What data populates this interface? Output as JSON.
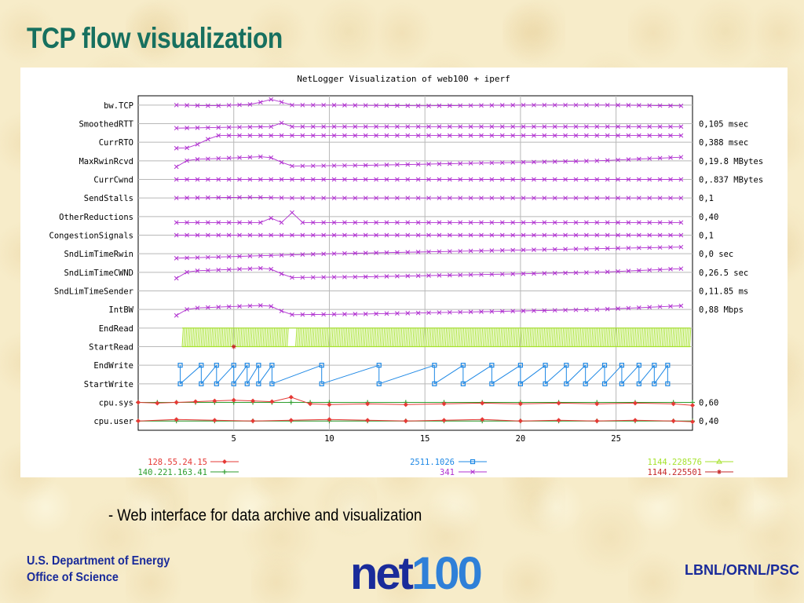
{
  "slide": {
    "title": "TCP flow visualization",
    "caption": "- Web interface for data archive and visualization",
    "org_line1": "U.S. Department of Energy",
    "org_line2": "Office of Science",
    "partners": "LBNL/ORNL/PSC",
    "logo_text": "net100"
  },
  "colors": {
    "title": "#17705f",
    "org": "#1a2b9a",
    "series_341": "#b030d0",
    "series_2511": "#1e88e5",
    "series_1144a": "#a6e22e",
    "series_1144b": "#c62828",
    "series_128": "#e53935",
    "series_140": "#2e9e2e"
  },
  "chart_data": {
    "type": "line",
    "title": "NetLogger Visualization of web100 + iperf",
    "xlabel": "",
    "ylabel": "",
    "xlim": [
      0,
      29
    ],
    "x_ticks": [
      5,
      10,
      15,
      20,
      25
    ],
    "grid": true,
    "legend_position": "bottom",
    "rows": [
      {
        "label": "bw.TCP",
        "range": ""
      },
      {
        "label": "SmoothedRTT",
        "range": "0,105 msec"
      },
      {
        "label": "CurrRTO",
        "range": "0,388 msec"
      },
      {
        "label": "MaxRwinRcvd",
        "range": "0,19.8 MBytes"
      },
      {
        "label": "CurrCwnd",
        "range": "0,.837 MBytes"
      },
      {
        "label": "SendStalls",
        "range": "0,1"
      },
      {
        "label": "OtherReductions",
        "range": "0,40"
      },
      {
        "label": "CongestionSignals",
        "range": "0,1"
      },
      {
        "label": "SndLimTimeRwin",
        "range": "0,0 sec"
      },
      {
        "label": "SndLimTimeCWND",
        "range": "0,26.5 sec"
      },
      {
        "label": "SndLimTimeSender",
        "range": "0,11.85 ms"
      },
      {
        "label": "IntBW",
        "range": "0,88 Mbps"
      },
      {
        "label": "EndRead",
        "range": ""
      },
      {
        "label": "StartRead",
        "range": ""
      },
      {
        "label": "EndWrite",
        "range": ""
      },
      {
        "label": "StartWrite",
        "range": ""
      },
      {
        "label": "cpu.sys",
        "range": "0,60"
      },
      {
        "label": "cpu.user",
        "range": "0,40"
      }
    ],
    "series": [
      {
        "name": "128.55.24.15",
        "color": "#e53935",
        "marker": "diamond"
      },
      {
        "name": "140.221.163.41",
        "color": "#2e9e2e",
        "marker": "plus"
      },
      {
        "name": "2511.1026",
        "color": "#1e88e5",
        "marker": "square"
      },
      {
        "name": "341",
        "color": "#b030d0",
        "marker": "x"
      },
      {
        "name": "1144.228576",
        "color": "#a6e22e",
        "marker": "tri"
      },
      {
        "name": "1144.225501",
        "color": "#c62828",
        "marker": "star"
      }
    ],
    "tcp_rows": [
      {
        "row": 0,
        "points": [
          [
            2,
            0.5
          ],
          [
            4,
            0.45
          ],
          [
            6,
            0.55
          ],
          [
            7,
            0.9
          ],
          [
            8,
            0.5
          ],
          [
            10,
            0.5
          ],
          [
            15,
            0.45
          ],
          [
            20,
            0.5
          ],
          [
            25,
            0.5
          ],
          [
            28.5,
            0.45
          ]
        ]
      },
      {
        "row": 1,
        "points": [
          [
            2,
            0.2
          ],
          [
            7,
            0.3
          ],
          [
            7.5,
            0.55
          ],
          [
            8,
            0.3
          ],
          [
            28.5,
            0.3
          ]
        ]
      },
      {
        "row": 2,
        "points": [
          [
            2,
            0.1
          ],
          [
            2.5,
            0.1
          ],
          [
            3,
            0.3
          ],
          [
            3.5,
            0.6
          ],
          [
            4,
            0.95
          ],
          [
            28.5,
            0.95
          ]
        ]
      },
      {
        "row": 3,
        "points": [
          [
            2,
            0.1
          ],
          [
            2.5,
            0.5
          ],
          [
            3,
            0.6
          ],
          [
            6,
            0.75
          ],
          [
            6.8,
            0.8
          ],
          [
            7.5,
            0.4
          ],
          [
            8,
            0.15
          ],
          [
            12,
            0.2
          ],
          [
            18,
            0.35
          ],
          [
            24,
            0.5
          ],
          [
            28.5,
            0.75
          ]
        ]
      },
      {
        "row": 4,
        "points": [
          [
            2,
            0.5
          ],
          [
            28.5,
            0.5
          ]
        ]
      },
      {
        "row": 5,
        "points": [
          [
            2,
            0.5
          ],
          [
            6,
            0.55
          ],
          [
            8,
            0.5
          ],
          [
            28.5,
            0.5
          ]
        ]
      },
      {
        "row": 6,
        "points": [
          [
            2,
            0.1
          ],
          [
            6.8,
            0.1
          ],
          [
            7.2,
            0.9
          ],
          [
            7.5,
            0.1
          ],
          [
            7.8,
            0.1
          ],
          [
            8.1,
            0.9
          ],
          [
            8.5,
            0.1
          ],
          [
            28.5,
            0.1
          ]
        ]
      },
      {
        "row": 7,
        "points": [
          [
            2,
            0.5
          ],
          [
            28.5,
            0.5
          ]
        ]
      },
      {
        "row": 8,
        "points": [
          [
            2,
            0.2
          ],
          [
            10,
            0.5
          ],
          [
            20,
            0.75
          ],
          [
            28.5,
            0.95
          ]
        ]
      },
      {
        "row": 9,
        "points": [
          [
            2,
            0.1
          ],
          [
            2.5,
            0.5
          ],
          [
            3,
            0.6
          ],
          [
            6,
            0.75
          ],
          [
            6.8,
            0.8
          ],
          [
            7.5,
            0.4
          ],
          [
            8,
            0.15
          ],
          [
            12,
            0.2
          ],
          [
            18,
            0.35
          ],
          [
            24,
            0.5
          ],
          [
            28.5,
            0.75
          ]
        ]
      }
    ],
    "read_pulse_x": [
      2.3,
      7.8,
      8.2,
      28.9
    ],
    "start_read_marker": 5.0,
    "write_times": [
      2.2,
      3.3,
      4.1,
      5.0,
      5.7,
      6.3,
      7.0,
      9.6,
      12.6,
      15.5,
      17.0,
      18.5,
      20.0,
      21.3,
      22.4,
      23.4,
      24.4,
      25.3,
      26.2,
      27.0,
      27.7
    ],
    "cpu_sys": [
      [
        0,
        0.5
      ],
      [
        1,
        0.45
      ],
      [
        2,
        0.5
      ],
      [
        3,
        0.55
      ],
      [
        4,
        0.6
      ],
      [
        5,
        0.65
      ],
      [
        6,
        0.6
      ],
      [
        7,
        0.55
      ],
      [
        8,
        0.85
      ],
      [
        9,
        0.4
      ],
      [
        10,
        0.35
      ],
      [
        12,
        0.4
      ],
      [
        14,
        0.35
      ],
      [
        16,
        0.4
      ],
      [
        18,
        0.45
      ],
      [
        20,
        0.4
      ],
      [
        22,
        0.45
      ],
      [
        24,
        0.4
      ],
      [
        26,
        0.45
      ],
      [
        28,
        0.4
      ],
      [
        29,
        0.3
      ]
    ],
    "cpu_user": [
      [
        0,
        0.5
      ],
      [
        2,
        0.6
      ],
      [
        4,
        0.55
      ],
      [
        6,
        0.5
      ],
      [
        8,
        0.55
      ],
      [
        10,
        0.6
      ],
      [
        12,
        0.55
      ],
      [
        14,
        0.5
      ],
      [
        16,
        0.55
      ],
      [
        18,
        0.6
      ],
      [
        20,
        0.5
      ],
      [
        22,
        0.55
      ],
      [
        24,
        0.5
      ],
      [
        26,
        0.55
      ],
      [
        28,
        0.5
      ],
      [
        29,
        0.45
      ]
    ]
  }
}
